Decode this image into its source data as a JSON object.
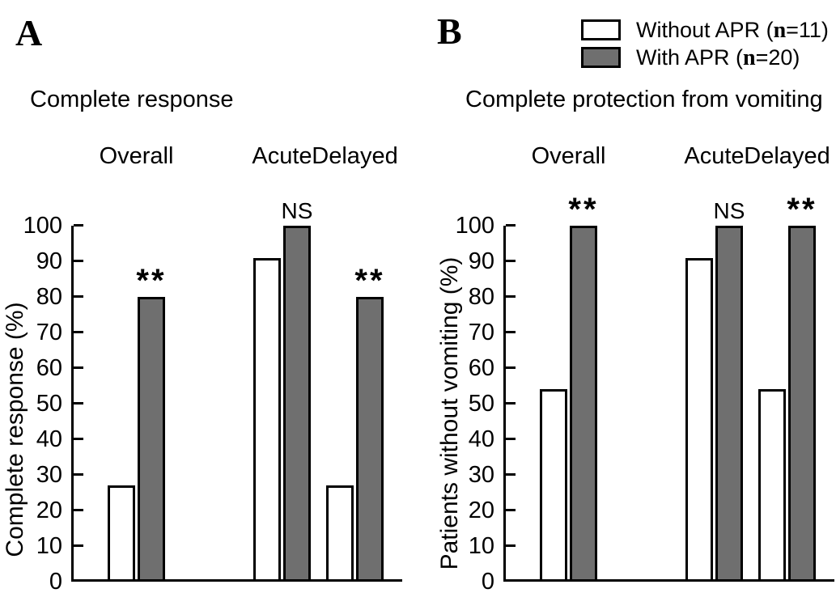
{
  "figure": {
    "background": "#ffffff"
  },
  "legend": {
    "items": [
      {
        "prefix": "Without APR (",
        "n": "n",
        "suffix": "=11)",
        "swatch": "without_apr"
      },
      {
        "prefix": "With APR (",
        "n": "n",
        "suffix": "=20)",
        "swatch": "with_apr"
      }
    ]
  },
  "colors": {
    "without_apr_fill": "#ffffff",
    "with_apr_fill": "#6f6f6f",
    "outline": "#000000",
    "text": "#000000",
    "background": "#ffffff"
  },
  "chart_data": [
    {
      "type": "bar",
      "panel": "A",
      "title": "Complete response",
      "ylabel": "Complete response (%)",
      "xlabel": "",
      "categories": [
        "Overall",
        "Acute",
        "Delayed"
      ],
      "series": [
        {
          "name": "Without APR (n=11)",
          "values": [
            27,
            91,
            27
          ]
        },
        {
          "name": "With APR (n=20)",
          "values": [
            80,
            100,
            80
          ]
        }
      ],
      "annotations": [
        {
          "category": "Overall",
          "text": "**"
        },
        {
          "category": "Acute",
          "text": "NS"
        },
        {
          "category": "Delayed",
          "text": "**"
        }
      ],
      "ylim": [
        0,
        100
      ],
      "yticks": [
        0,
        10,
        20,
        30,
        40,
        50,
        60,
        70,
        80,
        90,
        100
      ],
      "grid": false,
      "legend_position": "top-right-of-figure"
    },
    {
      "type": "bar",
      "panel": "B",
      "title": "Complete protection from vomiting",
      "ylabel": "Patients without vomiting (%)",
      "xlabel": "",
      "categories": [
        "Overall",
        "Acute",
        "Delayed"
      ],
      "series": [
        {
          "name": "Without APR (n=11)",
          "values": [
            54,
            91,
            54
          ]
        },
        {
          "name": "With APR (n=20)",
          "values": [
            100,
            100,
            100
          ]
        }
      ],
      "annotations": [
        {
          "category": "Overall",
          "text": "**"
        },
        {
          "category": "Acute",
          "text": "NS"
        },
        {
          "category": "Delayed",
          "text": "**"
        }
      ],
      "ylim": [
        0,
        100
      ],
      "yticks": [
        0,
        10,
        20,
        30,
        40,
        50,
        60,
        70,
        80,
        90,
        100
      ],
      "grid": false,
      "legend_position": "top-right-of-figure"
    }
  ]
}
